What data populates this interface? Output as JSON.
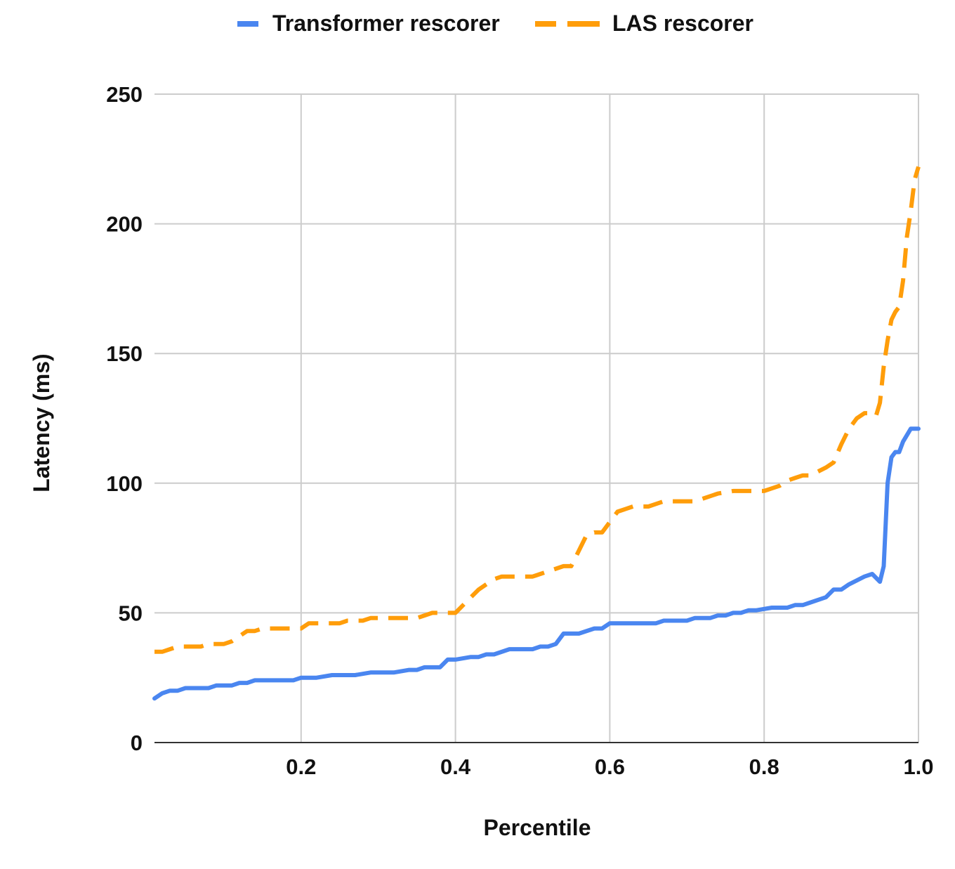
{
  "chart_data": {
    "type": "line",
    "xlabel": "Percentile",
    "ylabel": "Latency (ms)",
    "xlim": [
      0.01,
      1.0
    ],
    "ylim": [
      0,
      250
    ],
    "x_ticks": [
      0.2,
      0.4,
      0.6,
      0.8,
      1.0
    ],
    "x_tick_labels": [
      "0.2",
      "0.4",
      "0.6",
      "0.8",
      "1.0"
    ],
    "y_ticks": [
      0,
      50,
      100,
      150,
      200,
      250
    ],
    "y_tick_labels": [
      "0",
      "50",
      "100",
      "150",
      "200",
      "250"
    ],
    "grid": true,
    "legend_position": "top-center",
    "series": [
      {
        "name": "Transformer rescorer",
        "color": "#4a86f0",
        "dash": "solid",
        "points": [
          [
            0.01,
            17
          ],
          [
            0.02,
            19
          ],
          [
            0.03,
            20
          ],
          [
            0.04,
            20
          ],
          [
            0.05,
            21
          ],
          [
            0.07,
            21
          ],
          [
            0.08,
            21
          ],
          [
            0.09,
            22
          ],
          [
            0.11,
            22
          ],
          [
            0.12,
            23
          ],
          [
            0.13,
            23
          ],
          [
            0.14,
            24
          ],
          [
            0.16,
            24
          ],
          [
            0.19,
            24
          ],
          [
            0.2,
            25
          ],
          [
            0.22,
            25
          ],
          [
            0.24,
            26
          ],
          [
            0.27,
            26
          ],
          [
            0.29,
            27
          ],
          [
            0.32,
            27
          ],
          [
            0.34,
            28
          ],
          [
            0.35,
            28
          ],
          [
            0.36,
            29
          ],
          [
            0.38,
            29
          ],
          [
            0.39,
            32
          ],
          [
            0.4,
            32
          ],
          [
            0.42,
            33
          ],
          [
            0.43,
            33
          ],
          [
            0.44,
            34
          ],
          [
            0.45,
            34
          ],
          [
            0.47,
            36
          ],
          [
            0.5,
            36
          ],
          [
            0.51,
            37
          ],
          [
            0.52,
            37
          ],
          [
            0.53,
            38
          ],
          [
            0.54,
            42
          ],
          [
            0.55,
            42
          ],
          [
            0.56,
            42
          ],
          [
            0.58,
            44
          ],
          [
            0.59,
            44
          ],
          [
            0.6,
            46
          ],
          [
            0.66,
            46
          ],
          [
            0.67,
            47
          ],
          [
            0.7,
            47
          ],
          [
            0.71,
            48
          ],
          [
            0.73,
            48
          ],
          [
            0.74,
            49
          ],
          [
            0.75,
            49
          ],
          [
            0.76,
            50
          ],
          [
            0.77,
            50
          ],
          [
            0.78,
            51
          ],
          [
            0.79,
            51
          ],
          [
            0.81,
            52
          ],
          [
            0.83,
            52
          ],
          [
            0.84,
            53
          ],
          [
            0.85,
            53
          ],
          [
            0.86,
            54
          ],
          [
            0.88,
            56
          ],
          [
            0.89,
            59
          ],
          [
            0.9,
            59
          ],
          [
            0.91,
            61
          ],
          [
            0.93,
            64
          ],
          [
            0.94,
            65
          ],
          [
            0.95,
            62
          ],
          [
            0.955,
            68
          ],
          [
            0.96,
            100
          ],
          [
            0.965,
            110
          ],
          [
            0.97,
            112
          ],
          [
            0.975,
            112
          ],
          [
            0.98,
            116
          ],
          [
            0.99,
            121
          ],
          [
            1.0,
            121
          ]
        ]
      },
      {
        "name": "LAS rescorer",
        "color": "#ff9d0a",
        "dash": "dashed",
        "points": [
          [
            0.01,
            35
          ],
          [
            0.02,
            35
          ],
          [
            0.03,
            36
          ],
          [
            0.04,
            37
          ],
          [
            0.06,
            37
          ],
          [
            0.07,
            37
          ],
          [
            0.08,
            38
          ],
          [
            0.09,
            38
          ],
          [
            0.1,
            38
          ],
          [
            0.11,
            39
          ],
          [
            0.12,
            41
          ],
          [
            0.13,
            43
          ],
          [
            0.14,
            43
          ],
          [
            0.15,
            44
          ],
          [
            0.16,
            44
          ],
          [
            0.2,
            44
          ],
          [
            0.21,
            46
          ],
          [
            0.25,
            46
          ],
          [
            0.26,
            47
          ],
          [
            0.28,
            47
          ],
          [
            0.29,
            48
          ],
          [
            0.35,
            48
          ],
          [
            0.36,
            49
          ],
          [
            0.37,
            50
          ],
          [
            0.39,
            50
          ],
          [
            0.4,
            50
          ],
          [
            0.41,
            53
          ],
          [
            0.42,
            56
          ],
          [
            0.43,
            59
          ],
          [
            0.44,
            61
          ],
          [
            0.45,
            63
          ],
          [
            0.46,
            64
          ],
          [
            0.5,
            64
          ],
          [
            0.51,
            65
          ],
          [
            0.52,
            66
          ],
          [
            0.53,
            67
          ],
          [
            0.54,
            68
          ],
          [
            0.55,
            68
          ],
          [
            0.56,
            74
          ],
          [
            0.57,
            80
          ],
          [
            0.58,
            81
          ],
          [
            0.59,
            81
          ],
          [
            0.6,
            85
          ],
          [
            0.61,
            89
          ],
          [
            0.62,
            90
          ],
          [
            0.63,
            91
          ],
          [
            0.65,
            91
          ],
          [
            0.66,
            92
          ],
          [
            0.67,
            93
          ],
          [
            0.71,
            93
          ],
          [
            0.72,
            94
          ],
          [
            0.73,
            95
          ],
          [
            0.74,
            96
          ],
          [
            0.76,
            97
          ],
          [
            0.8,
            97
          ],
          [
            0.81,
            98
          ],
          [
            0.82,
            99
          ],
          [
            0.83,
            101
          ],
          [
            0.84,
            102
          ],
          [
            0.85,
            103
          ],
          [
            0.86,
            103
          ],
          [
            0.88,
            106
          ],
          [
            0.89,
            108
          ],
          [
            0.9,
            115
          ],
          [
            0.91,
            121
          ],
          [
            0.92,
            125
          ],
          [
            0.93,
            127
          ],
          [
            0.94,
            127
          ],
          [
            0.945,
            126
          ],
          [
            0.95,
            131
          ],
          [
            0.955,
            145
          ],
          [
            0.96,
            155
          ],
          [
            0.965,
            163
          ],
          [
            0.97,
            166
          ],
          [
            0.975,
            168
          ],
          [
            0.98,
            178
          ],
          [
            0.985,
            195
          ],
          [
            0.99,
            205
          ],
          [
            0.995,
            217
          ],
          [
            1.0,
            222
          ]
        ]
      }
    ]
  }
}
